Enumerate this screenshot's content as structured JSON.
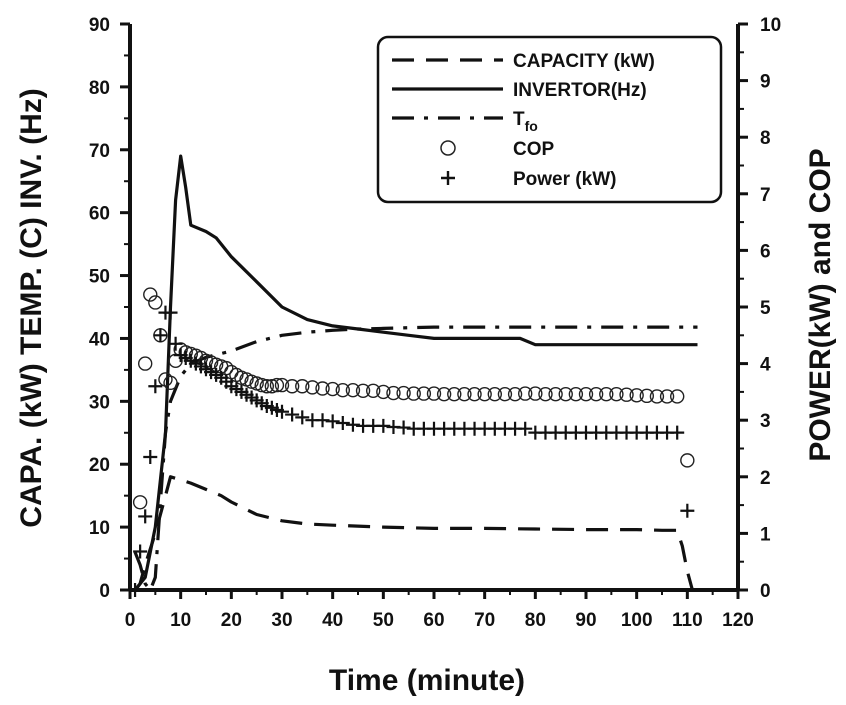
{
  "chart_data": {
    "type": "line",
    "xlabel": "Time (minute)",
    "ylabel_left": "CAPA. (kW) TEMP. (C) INV. (Hz)",
    "ylabel_right": "POWER(kW) and COP",
    "xlim": [
      0,
      120
    ],
    "ylim_left": [
      0,
      90
    ],
    "ylim_right": [
      0,
      10
    ],
    "x_ticks": [
      0,
      10,
      20,
      30,
      40,
      50,
      60,
      70,
      80,
      90,
      100,
      110,
      120
    ],
    "y_left_ticks": [
      0,
      10,
      20,
      30,
      40,
      50,
      60,
      70,
      80,
      90
    ],
    "y_right_ticks": [
      0,
      1,
      2,
      3,
      4,
      5,
      6,
      7,
      8,
      9,
      10
    ],
    "grid": false,
    "legend_position": "top-right",
    "series": [
      {
        "name": "CAPACITY (kW)",
        "axis": "left",
        "style": "dashed",
        "x": [
          1,
          2,
          3,
          5,
          7,
          8,
          10,
          12,
          15,
          18,
          20,
          25,
          30,
          35,
          40,
          50,
          60,
          70,
          80,
          90,
          100,
          105,
          108,
          109,
          110,
          111
        ],
        "y": [
          0,
          1,
          4,
          9,
          15,
          18,
          17.5,
          17,
          16,
          15,
          14,
          12,
          11,
          10.5,
          10.3,
          10,
          9.8,
          9.8,
          9.7,
          9.6,
          9.6,
          9.5,
          9.5,
          7,
          3,
          0
        ]
      },
      {
        "name": "INVERTOR(Hz)",
        "axis": "left",
        "style": "solid",
        "x": [
          1,
          3,
          5,
          7,
          8,
          9,
          10,
          11,
          12,
          15,
          17,
          20,
          25,
          30,
          35,
          40,
          45,
          50,
          55,
          60,
          65,
          70,
          75,
          77,
          80,
          90,
          100,
          112
        ],
        "y": [
          0,
          2,
          10,
          25,
          45,
          62,
          69,
          64,
          58,
          57,
          56,
          53,
          49,
          45,
          43,
          42,
          41.5,
          41,
          40.5,
          40,
          40,
          40,
          40,
          40,
          39,
          39,
          39,
          39
        ]
      },
      {
        "name": "T",
        "name_subscript": "fo",
        "axis": "left",
        "style": "dash-dot",
        "x": [
          1,
          2,
          3,
          4,
          5,
          6,
          7,
          8,
          10,
          12,
          15,
          20,
          25,
          30,
          35,
          40,
          45,
          50,
          60,
          70,
          80,
          90,
          100,
          112
        ],
        "y": [
          6,
          4,
          1,
          0,
          2,
          14,
          25,
          30,
          34,
          36,
          37,
          38,
          39.5,
          40.5,
          41,
          41.3,
          41.5,
          41.6,
          41.8,
          41.8,
          41.8,
          41.8,
          41.8,
          41.8
        ]
      },
      {
        "name": "COP",
        "axis": "right",
        "style": "circle",
        "x": [
          2,
          3,
          4,
          5,
          6,
          7,
          8,
          9,
          10,
          11,
          12,
          13,
          14,
          15,
          16,
          17,
          18,
          19,
          20,
          21,
          22,
          23,
          24,
          25,
          26,
          27,
          28,
          29,
          30,
          32,
          34,
          36,
          38,
          40,
          42,
          44,
          46,
          48,
          50,
          52,
          54,
          56,
          58,
          60,
          62,
          64,
          66,
          68,
          70,
          72,
          74,
          76,
          78,
          80,
          82,
          84,
          86,
          88,
          90,
          92,
          94,
          96,
          98,
          100,
          102,
          104,
          106,
          108,
          110
        ],
        "y": [
          1.55,
          4.0,
          5.22,
          5.08,
          4.5,
          3.72,
          3.66,
          4.05,
          4.25,
          4.2,
          4.17,
          4.14,
          4.1,
          4.05,
          4.02,
          3.98,
          3.95,
          3.92,
          3.85,
          3.8,
          3.75,
          3.72,
          3.68,
          3.65,
          3.62,
          3.6,
          3.6,
          3.62,
          3.62,
          3.6,
          3.6,
          3.58,
          3.56,
          3.55,
          3.53,
          3.53,
          3.52,
          3.52,
          3.5,
          3.48,
          3.48,
          3.47,
          3.47,
          3.47,
          3.46,
          3.46,
          3.46,
          3.46,
          3.46,
          3.46,
          3.46,
          3.46,
          3.47,
          3.47,
          3.46,
          3.46,
          3.46,
          3.46,
          3.46,
          3.46,
          3.46,
          3.46,
          3.45,
          3.44,
          3.43,
          3.42,
          3.42,
          3.42,
          2.29
        ]
      },
      {
        "name": "Power (kW)",
        "axis": "right",
        "style": "plus",
        "x": [
          1,
          2,
          3,
          4,
          5,
          6,
          7,
          8,
          9,
          10,
          11,
          12,
          13,
          14,
          15,
          16,
          17,
          18,
          19,
          20,
          21,
          22,
          23,
          24,
          25,
          26,
          27,
          28,
          29,
          30,
          32,
          34,
          36,
          38,
          40,
          42,
          44,
          46,
          48,
          50,
          52,
          54,
          56,
          58,
          60,
          62,
          64,
          66,
          68,
          70,
          72,
          74,
          76,
          78,
          80,
          82,
          84,
          86,
          88,
          90,
          92,
          94,
          96,
          98,
          100,
          102,
          104,
          106,
          108,
          110
        ],
        "y": [
          0.0,
          0.68,
          1.3,
          2.35,
          3.6,
          4.5,
          4.9,
          4.9,
          4.35,
          4.15,
          4.1,
          4.05,
          4.0,
          3.95,
          3.9,
          3.85,
          3.8,
          3.75,
          3.68,
          3.6,
          3.55,
          3.5,
          3.45,
          3.4,
          3.35,
          3.3,
          3.25,
          3.22,
          3.18,
          3.15,
          3.1,
          3.05,
          3.0,
          3.0,
          2.98,
          2.95,
          2.92,
          2.9,
          2.9,
          2.9,
          2.88,
          2.87,
          2.85,
          2.85,
          2.85,
          2.85,
          2.85,
          2.85,
          2.85,
          2.85,
          2.85,
          2.85,
          2.85,
          2.85,
          2.78,
          2.78,
          2.78,
          2.78,
          2.78,
          2.78,
          2.78,
          2.78,
          2.78,
          2.78,
          2.78,
          2.78,
          2.78,
          2.78,
          2.78,
          1.4
        ]
      }
    ]
  },
  "legend": {
    "items": [
      {
        "label": "CAPACITY (kW)"
      },
      {
        "label": "INVERTOR(Hz)"
      },
      {
        "label": "T",
        "sub": "fo"
      },
      {
        "label": "COP"
      },
      {
        "label": "Power (kW)"
      }
    ]
  }
}
